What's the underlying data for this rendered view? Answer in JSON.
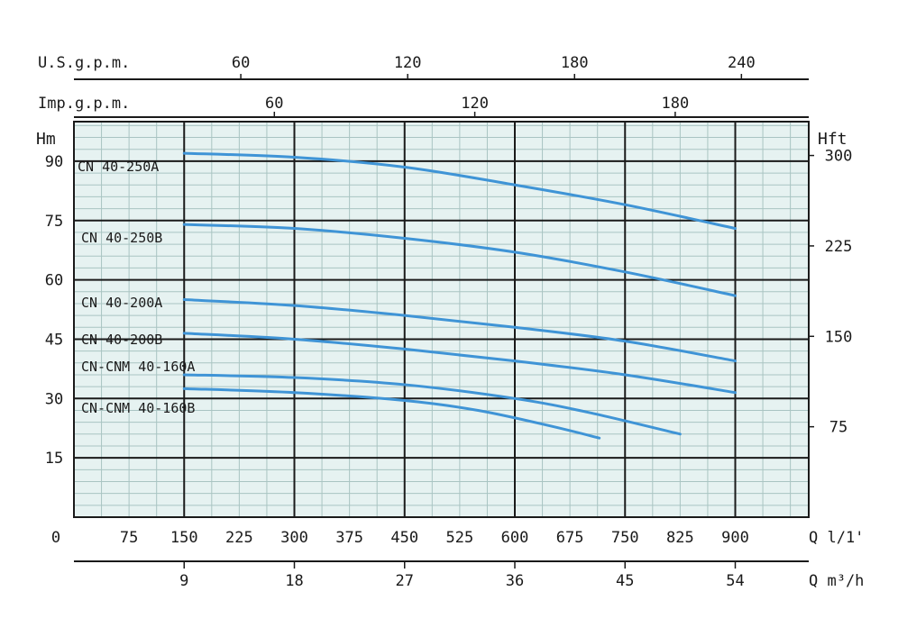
{
  "chart_data": {
    "type": "line",
    "plot": {
      "background": "#e6f2f1",
      "minor_grid": "#a9c4c2",
      "major_grid": "#1a1a1a",
      "curve_color": "#3f94d6"
    },
    "x_axis": {
      "label": "Q l/1'",
      "range": [
        0,
        1000
      ],
      "ticks": [
        0,
        75,
        150,
        225,
        300,
        375,
        450,
        525,
        600,
        675,
        750,
        825,
        900
      ],
      "tick_labels": [
        "0",
        "75",
        "150",
        "225",
        "300",
        "375",
        "450",
        "525",
        "600",
        "675",
        "750",
        "825",
        "900"
      ]
    },
    "x_axis_m3h": {
      "label": "Q m³/h",
      "ticks": [
        9,
        18,
        27,
        36,
        45,
        54
      ],
      "tick_labels": [
        "9",
        "18",
        "27",
        "36",
        "45",
        "54"
      ]
    },
    "x_axis_usgpm": {
      "label": "U.S.g.p.m.",
      "ticks": [
        60,
        120,
        180,
        240
      ],
      "tick_labels": [
        "60",
        "120",
        "180",
        "240"
      ]
    },
    "x_axis_impgpm": {
      "label": "Imp.g.p.m.",
      "ticks": [
        60,
        120,
        180
      ],
      "tick_labels": [
        "60",
        "120",
        "180"
      ]
    },
    "y_axis_left": {
      "label": "Hm",
      "range": [
        0,
        100
      ],
      "ticks": [
        15,
        30,
        45,
        60,
        75,
        90
      ],
      "tick_labels": [
        "15",
        "30",
        "45",
        "60",
        "75",
        "90"
      ]
    },
    "y_axis_right": {
      "label": "Hft",
      "ticks": [
        75,
        150,
        225,
        300
      ],
      "tick_labels": [
        "75",
        "150",
        "225",
        "300"
      ]
    },
    "series": [
      {
        "name": "CN 40-250A",
        "x": [
          150,
          300,
          450,
          600,
          750,
          900
        ],
        "y": [
          92,
          91,
          88.5,
          84,
          79,
          73
        ]
      },
      {
        "name": "CN 40-250B",
        "x": [
          150,
          300,
          450,
          600,
          750,
          900
        ],
        "y": [
          74,
          73,
          70.5,
          67,
          62,
          56
        ]
      },
      {
        "name": "CN 40-200A",
        "x": [
          150,
          300,
          450,
          600,
          750,
          900
        ],
        "y": [
          55,
          53.5,
          51,
          48,
          44.5,
          39.5
        ]
      },
      {
        "name": "CN 40-200B",
        "x": [
          150,
          300,
          450,
          600,
          750,
          900
        ],
        "y": [
          46.5,
          45,
          42.5,
          39.5,
          36,
          31.5
        ]
      },
      {
        "name": "CN-CNM 40-160A",
        "x": [
          150,
          300,
          450,
          600,
          700,
          825
        ],
        "y": [
          36,
          35.3,
          33.5,
          30,
          26.5,
          21
        ]
      },
      {
        "name": "CN-CNM 40-160B",
        "x": [
          150,
          300,
          450,
          550,
          650,
          715
        ],
        "y": [
          32.5,
          31.5,
          29.5,
          27,
          23,
          20
        ]
      }
    ]
  }
}
